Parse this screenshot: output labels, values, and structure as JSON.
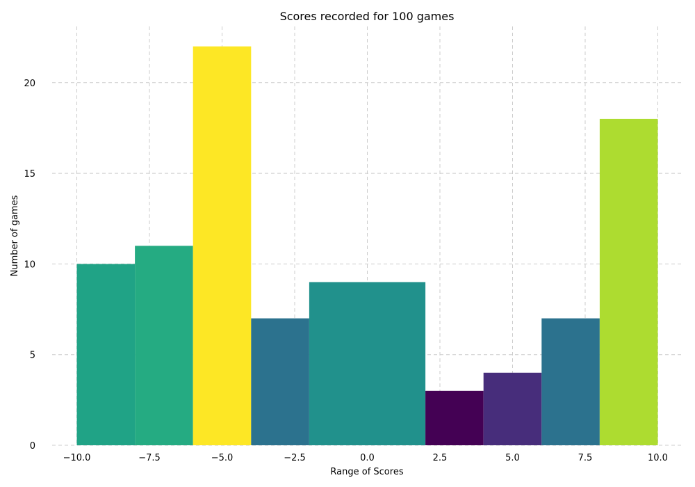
{
  "chart_data": {
    "type": "bar",
    "title": "Scores recorded for 100 games",
    "xlabel": "Range of Scores",
    "ylabel": "Number of games",
    "bins": [
      {
        "start": -10,
        "end": -8,
        "count": 10,
        "color": "#20a386"
      },
      {
        "start": -8,
        "end": -6,
        "count": 11,
        "color": "#25ab82"
      },
      {
        "start": -6,
        "end": -4,
        "count": 22,
        "color": "#fde725"
      },
      {
        "start": -4,
        "end": -2,
        "count": 7,
        "color": "#2c728e"
      },
      {
        "start": -2,
        "end": 0,
        "count": 9,
        "color": "#21918c"
      },
      {
        "start": 0,
        "end": 2,
        "count": 9,
        "color": "#21918c"
      },
      {
        "start": 2,
        "end": 4,
        "count": 3,
        "color": "#440154"
      },
      {
        "start": 4,
        "end": 6,
        "count": 4,
        "color": "#472d7b"
      },
      {
        "start": 6,
        "end": 8,
        "count": 7,
        "color": "#2c728e"
      },
      {
        "start": 8,
        "end": 10,
        "count": 18,
        "color": "#addc30"
      }
    ],
    "xlim": [
      -10.85,
      10.85
    ],
    "ylim": [
      0,
      23.1
    ],
    "xticks": [
      -10,
      -7.5,
      -5,
      -2.5,
      0,
      2.5,
      5,
      7.5,
      10
    ],
    "xtick_labels": [
      "−10.0",
      "−7.5",
      "−5.0",
      "−2.5",
      "0.0",
      "2.5",
      "5.0",
      "7.5",
      "10.0"
    ],
    "yticks": [
      0,
      5,
      10,
      15,
      20
    ],
    "ytick_labels": [
      "0",
      "5",
      "10",
      "15",
      "20"
    ],
    "grid": true
  }
}
